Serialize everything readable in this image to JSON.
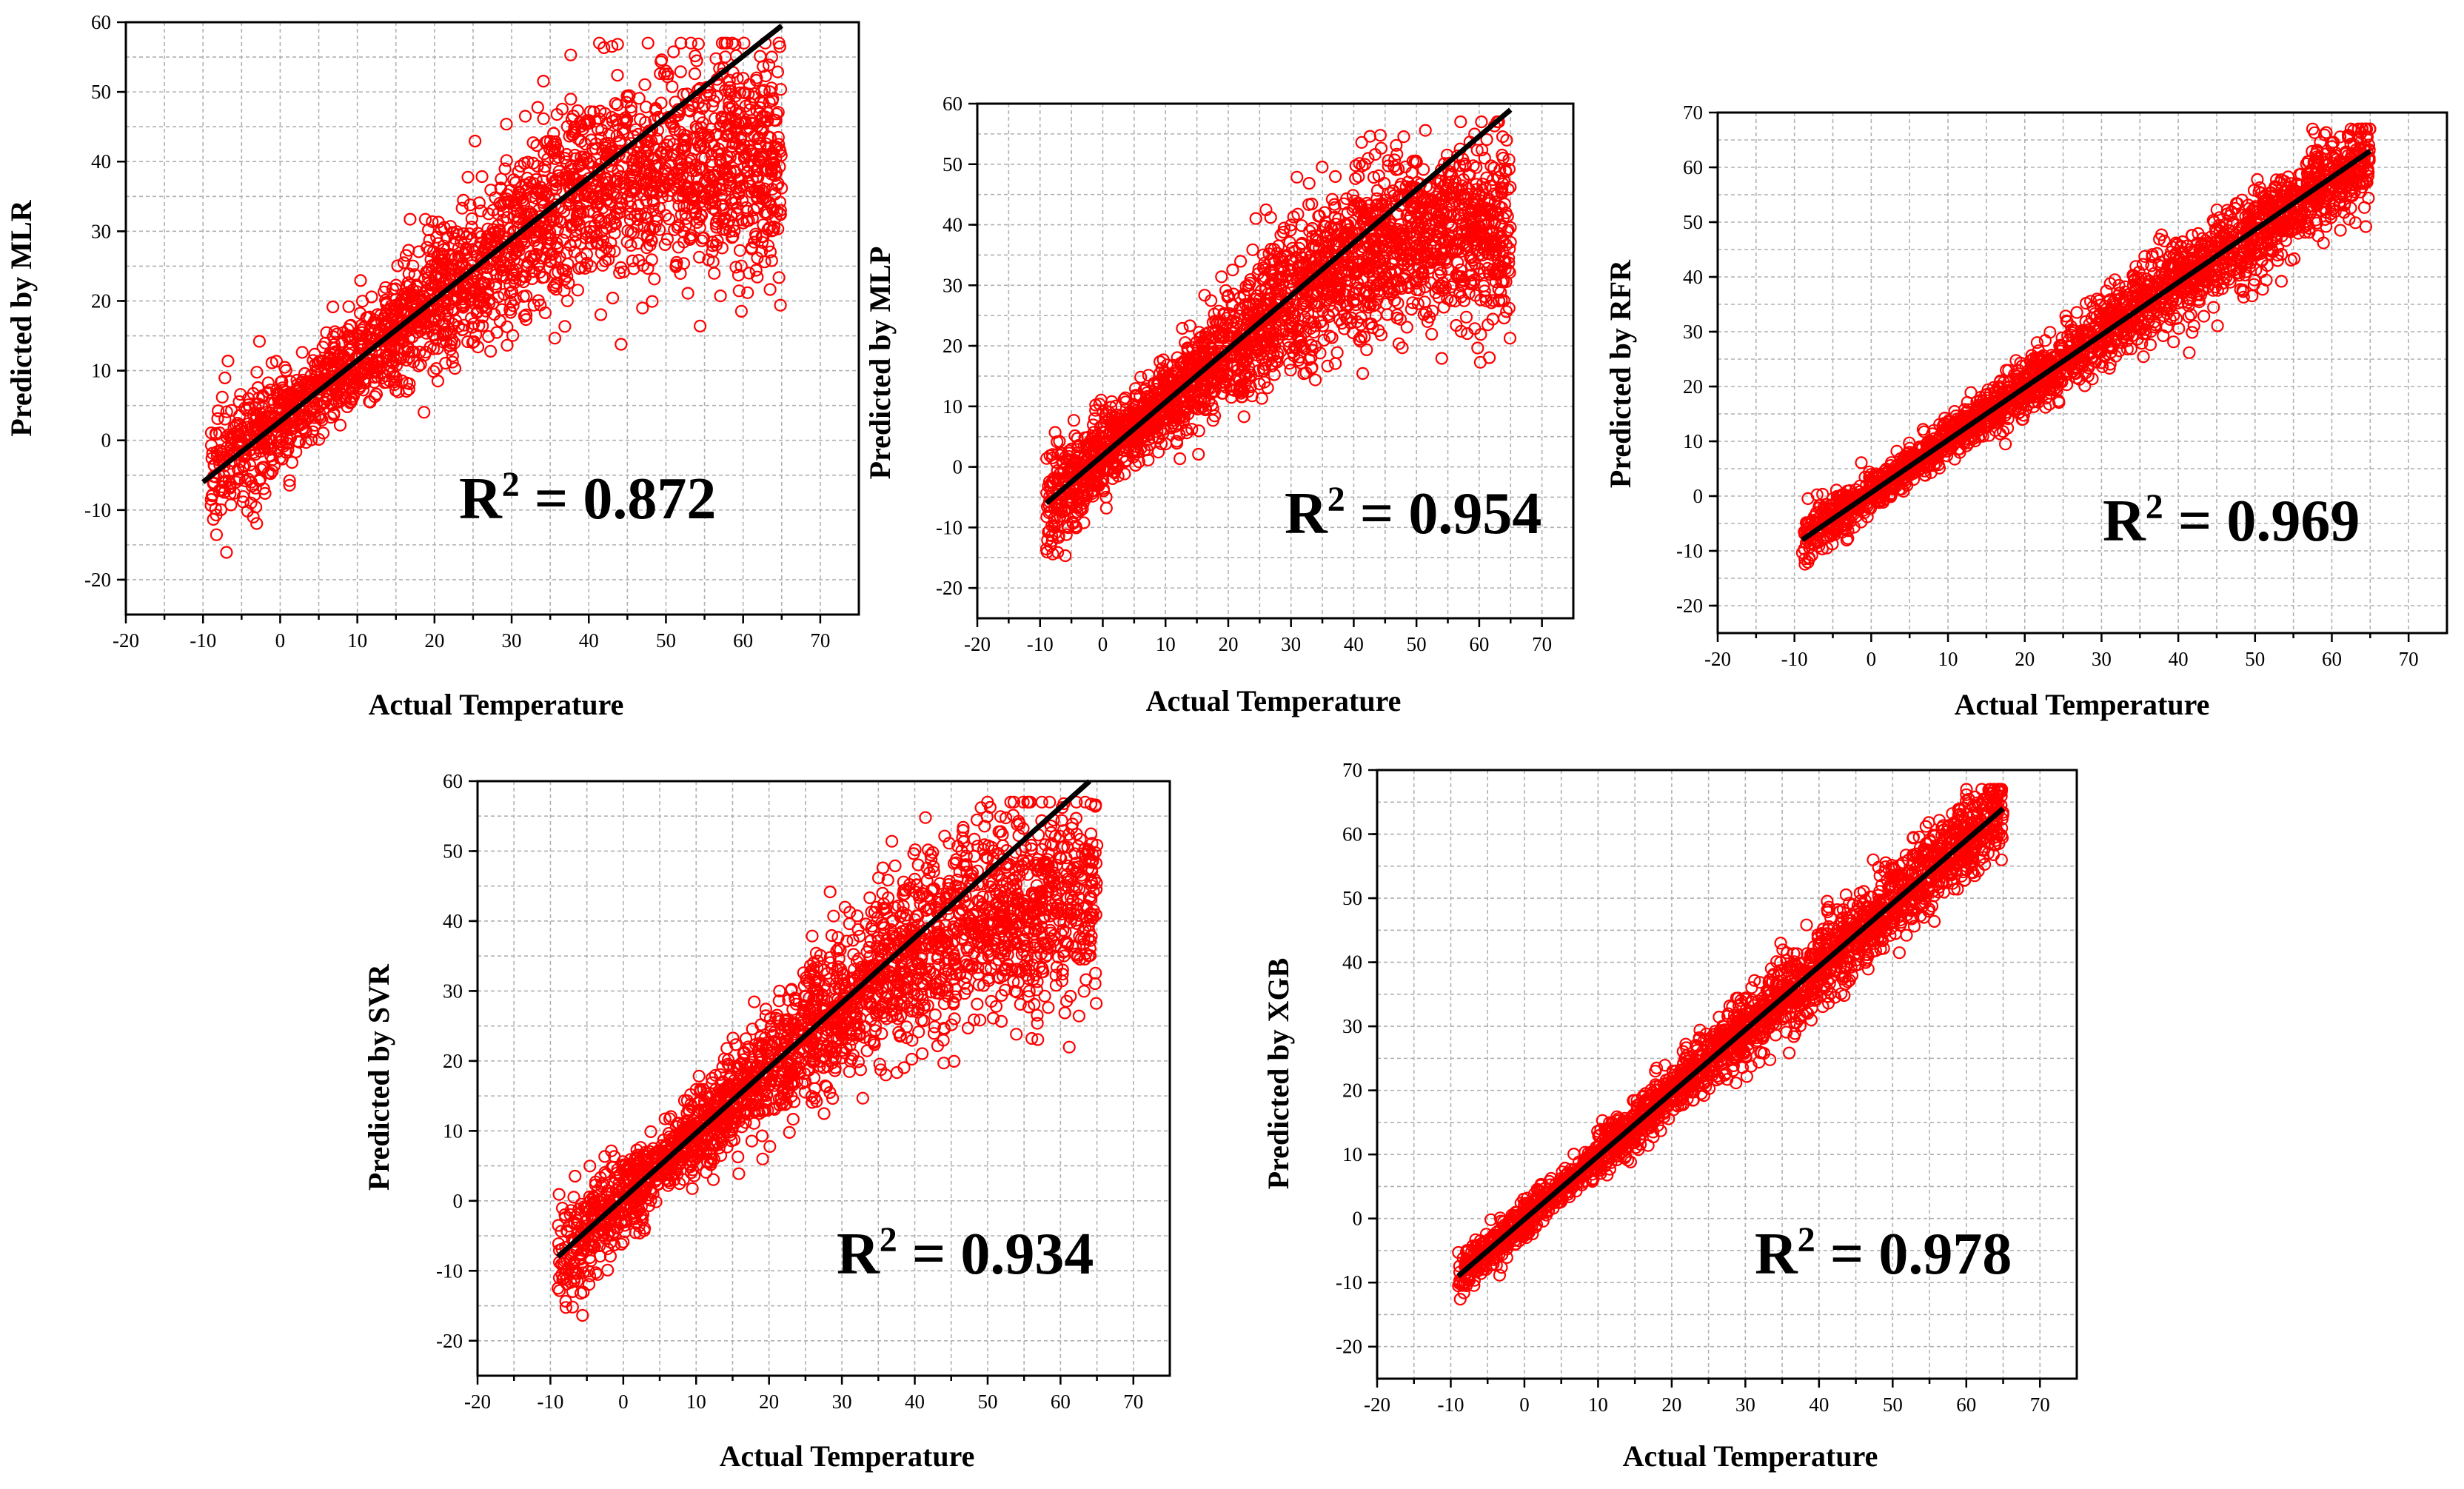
{
  "figure": "Predicted vs Actual Temperature scatter plots for five models",
  "chart_data": [
    {
      "type": "scatter",
      "model": "MLR",
      "xlabel": "Actual Temperature",
      "ylabel": "Predicted by MLR",
      "r2_text": "= 0.872",
      "r2_value": 0.872,
      "xlim": [
        -20,
        75
      ],
      "ylim": [
        -25,
        60
      ],
      "xticks": [
        -20,
        -10,
        0,
        10,
        20,
        30,
        40,
        50,
        60,
        70
      ],
      "yticks": [
        -20,
        -10,
        0,
        10,
        20,
        30,
        40,
        50,
        60
      ],
      "fit_line": {
        "x": [
          -10,
          65
        ],
        "y": [
          -6,
          59.5
        ]
      },
      "point_model": {
        "n": 2400,
        "x_range": [
          -9,
          65
        ],
        "saturation": 0.62,
        "noise": 5.2,
        "seed": 11
      },
      "point_color": "#ff0000"
    },
    {
      "type": "scatter",
      "model": "MLP",
      "xlabel": "Actual Temperature",
      "ylabel": "Predicted by MLP",
      "r2_text": "= 0.954",
      "r2_value": 0.954,
      "xlim": [
        -20,
        75
      ],
      "ylim": [
        -25,
        60
      ],
      "xticks": [
        -20,
        -10,
        0,
        10,
        20,
        30,
        40,
        50,
        60,
        70
      ],
      "yticks": [
        -20,
        -10,
        0,
        10,
        20,
        30,
        40,
        50,
        60
      ],
      "fit_line": {
        "x": [
          -9,
          65
        ],
        "y": [
          -6,
          59
        ]
      },
      "point_model": {
        "n": 2400,
        "x_range": [
          -9,
          65
        ],
        "saturation": 0.62,
        "noise": 5.0,
        "seed": 23
      },
      "point_color": "#ff0000"
    },
    {
      "type": "scatter",
      "model": "RFR",
      "xlabel": "Actual Temperature",
      "ylabel": "Predicted by RFR",
      "r2_text": "= 0.969",
      "r2_value": 0.969,
      "xlim": [
        -20,
        75
      ],
      "ylim": [
        -25,
        70
      ],
      "xticks": [
        -20,
        -10,
        0,
        10,
        20,
        30,
        40,
        50,
        60,
        70
      ],
      "yticks": [
        -20,
        -10,
        0,
        10,
        20,
        30,
        40,
        50,
        60,
        70
      ],
      "fit_line": {
        "x": [
          -9,
          65
        ],
        "y": [
          -8,
          63
        ]
      },
      "point_model": {
        "n": 2200,
        "x_range": [
          -9,
          65
        ],
        "saturation": 0.02,
        "noise": 2.8,
        "seed": 37
      },
      "point_color": "#ff0000"
    },
    {
      "type": "scatter",
      "model": "SVR",
      "xlabel": "Actual Temperature",
      "ylabel": "Predicted by SVR",
      "r2_text": "= 0.934",
      "r2_value": 0.934,
      "xlim": [
        -20,
        75
      ],
      "ylim": [
        -25,
        60
      ],
      "xticks": [
        -20,
        -10,
        0,
        10,
        20,
        30,
        40,
        50,
        60,
        70
      ],
      "yticks": [
        -20,
        -10,
        0,
        10,
        20,
        30,
        40,
        50,
        60
      ],
      "fit_line": {
        "x": [
          -9,
          64
        ],
        "y": [
          -8,
          60
        ]
      },
      "point_model": {
        "n": 2400,
        "x_range": [
          -9,
          65
        ],
        "saturation": 0.55,
        "noise": 4.6,
        "seed": 53
      },
      "point_color": "#ff0000"
    },
    {
      "type": "scatter",
      "model": "XGB",
      "xlabel": "Actual Temperature",
      "ylabel": "Predicted by XGB",
      "r2_text": "= 0.978",
      "r2_value": 0.978,
      "xlim": [
        -20,
        75
      ],
      "ylim": [
        -25,
        70
      ],
      "xticks": [
        -20,
        -10,
        0,
        10,
        20,
        30,
        40,
        50,
        60,
        70
      ],
      "yticks": [
        -20,
        -10,
        0,
        10,
        20,
        30,
        40,
        50,
        60,
        70
      ],
      "fit_line": {
        "x": [
          -9,
          65
        ],
        "y": [
          -9,
          64
        ]
      },
      "point_model": {
        "n": 2200,
        "x_range": [
          -9,
          65
        ],
        "saturation": 0.0,
        "noise": 2.3,
        "seed": 71
      },
      "point_color": "#ff0000"
    }
  ]
}
